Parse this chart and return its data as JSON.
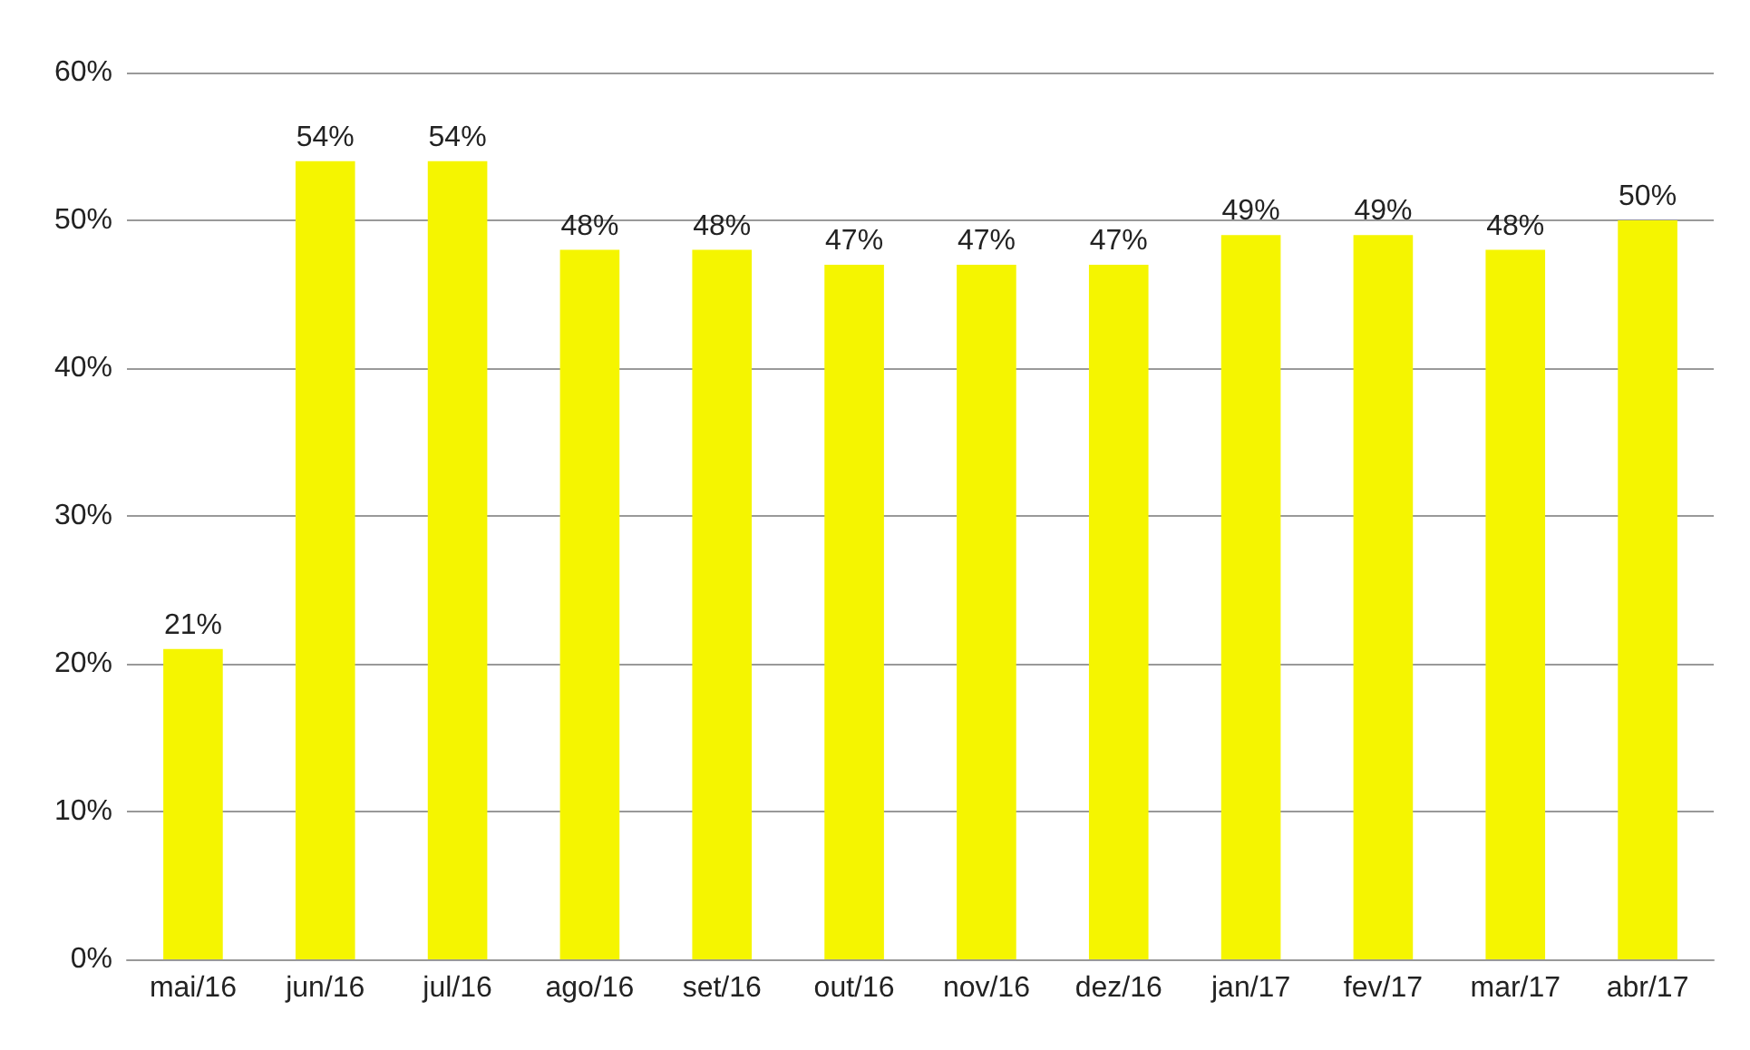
{
  "chart_data": {
    "type": "bar",
    "categories": [
      "mai/16",
      "jun/16",
      "jul/16",
      "ago/16",
      "set/16",
      "out/16",
      "nov/16",
      "dez/16",
      "jan/17",
      "fev/17",
      "mar/17",
      "abr/17"
    ],
    "values": [
      21,
      54,
      54,
      48,
      48,
      47,
      47,
      47,
      49,
      49,
      48,
      50
    ],
    "value_labels": [
      "21%",
      "54%",
      "54%",
      "48%",
      "48%",
      "47%",
      "47%",
      "47%",
      "49%",
      "49%",
      "48%",
      "50%"
    ],
    "color": "#f5f500",
    "ylim": [
      0,
      60
    ],
    "yticks": [
      {
        "value": 0,
        "label": "0%"
      },
      {
        "value": 10,
        "label": "10%"
      },
      {
        "value": 20,
        "label": "20%"
      },
      {
        "value": 30,
        "label": "30%"
      },
      {
        "value": 40,
        "label": "40%"
      },
      {
        "value": 50,
        "label": "50%"
      },
      {
        "value": 60,
        "label": "60%"
      }
    ],
    "grid": true
  }
}
